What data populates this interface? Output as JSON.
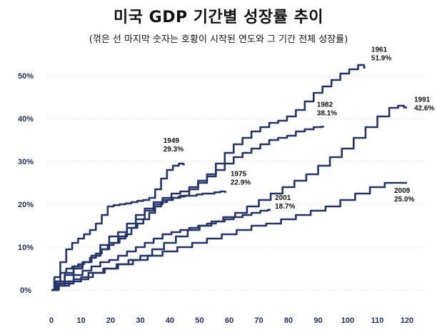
{
  "title": "미국 GDP 기간별 성장률 추이",
  "subtitle": "(꺾은 선 마지막 숫자는 호황이 시작된 연도와 그 기간 전체 성장률)",
  "chart_data": {
    "type": "line",
    "title": "미국 GDP 기간별 성장률 추이",
    "subtitle": "(꺾은 선 마지막 숫자는 호황이 시작된 연도와 그 기간 전체 성장률)",
    "xlabel": "",
    "ylabel": "",
    "xlim": [
      0,
      120
    ],
    "ylim": [
      0,
      50
    ],
    "x_ticks": [
      "0",
      "10",
      "20",
      "30",
      "40",
      "50",
      "60",
      "70",
      "80",
      "90",
      "100",
      "110",
      "120"
    ],
    "y_ticks": [
      "0%",
      "10%",
      "20%",
      "30%",
      "40%",
      "50%"
    ],
    "grid": true,
    "series_color": "#233468",
    "series": [
      {
        "name": "1961",
        "label": "51.9%",
        "x": [
          0,
          3,
          6,
          9,
          12,
          15,
          18,
          21,
          24,
          27,
          30,
          33,
          36,
          39,
          42,
          45,
          48,
          51,
          54,
          57,
          60,
          63,
          66,
          69,
          72,
          75,
          78,
          81,
          84,
          87,
          90,
          93,
          96,
          99,
          102,
          105,
          106
        ],
        "y": [
          0,
          2.0,
          4.0,
          5.5,
          6.5,
          8.0,
          10.5,
          12.5,
          13.5,
          15.5,
          17.5,
          19.0,
          20.5,
          21.5,
          22.5,
          23.0,
          24.0,
          25.5,
          27.0,
          29.5,
          32.0,
          34.0,
          35.5,
          37.0,
          38.0,
          39.0,
          39.5,
          40.5,
          42.0,
          44.0,
          46.0,
          47.5,
          49.0,
          50.5,
          51.5,
          52.5,
          51.9
        ]
      },
      {
        "name": "1949",
        "label": "29.3%",
        "x": [
          0,
          2,
          4,
          6,
          8,
          10,
          12,
          14,
          16,
          18,
          20,
          22,
          24,
          26,
          28,
          30,
          32,
          34,
          36,
          38,
          40,
          42,
          44,
          45
        ],
        "y": [
          0,
          3.0,
          6.5,
          9.5,
          11.0,
          12.0,
          13.0,
          14.0,
          15.5,
          17.5,
          19.5,
          19.8,
          20.0,
          20.2,
          20.5,
          20.8,
          21.0,
          21.5,
          23.5,
          26.0,
          28.0,
          29.0,
          29.5,
          29.3
        ]
      },
      {
        "name": "1975",
        "label": "22.9%",
        "x": [
          0,
          2,
          4,
          6,
          8,
          10,
          12,
          14,
          16,
          18,
          20,
          22,
          24,
          26,
          28,
          30,
          32,
          34,
          36,
          38,
          40,
          42,
          44,
          46,
          48,
          50,
          52,
          54,
          56,
          58,
          59
        ],
        "y": [
          0,
          2.0,
          4.0,
          5.0,
          5.5,
          6.0,
          6.5,
          7.5,
          8.5,
          9.5,
          10.5,
          11.0,
          12.0,
          13.0,
          14.5,
          15.5,
          16.5,
          18.0,
          19.5,
          20.5,
          21.0,
          21.5,
          21.8,
          22.0,
          22.0,
          22.3,
          22.5,
          22.5,
          22.8,
          23.0,
          22.9
        ]
      },
      {
        "name": "1982",
        "label": "38.1%",
        "x": [
          0,
          3,
          6,
          9,
          12,
          15,
          18,
          21,
          24,
          27,
          30,
          33,
          36,
          39,
          42,
          45,
          48,
          51,
          54,
          57,
          60,
          63,
          66,
          69,
          72,
          75,
          78,
          81,
          84,
          87,
          90,
          92
        ],
        "y": [
          0,
          1.5,
          3.5,
          5.0,
          6.5,
          8.0,
          9.5,
          11.0,
          12.5,
          14.5,
          16.5,
          18.5,
          20.0,
          21.0,
          21.5,
          22.0,
          23.5,
          25.0,
          26.5,
          28.0,
          29.5,
          31.0,
          32.0,
          33.0,
          34.0,
          35.0,
          35.5,
          36.0,
          37.0,
          37.5,
          38.0,
          38.1
        ]
      },
      {
        "name": "1991",
        "label": "42.6%",
        "x": [
          0,
          4,
          8,
          12,
          16,
          20,
          24,
          28,
          32,
          36,
          40,
          44,
          48,
          52,
          56,
          60,
          64,
          68,
          72,
          76,
          80,
          84,
          88,
          92,
          96,
          100,
          104,
          108,
          112,
          116,
          118,
          120
        ],
        "y": [
          0,
          1.0,
          2.0,
          3.0,
          4.0,
          5.0,
          6.0,
          7.0,
          8.0,
          9.5,
          11.0,
          12.5,
          14.0,
          15.0,
          16.0,
          17.0,
          18.0,
          19.5,
          21.0,
          22.5,
          24.0,
          25.5,
          27.0,
          29.0,
          31.0,
          33.0,
          35.5,
          38.0,
          40.5,
          42.5,
          43.0,
          42.6
        ]
      },
      {
        "name": "2001",
        "label": "18.7%",
        "x": [
          0,
          3,
          6,
          9,
          12,
          15,
          18,
          21,
          24,
          27,
          30,
          33,
          36,
          39,
          42,
          45,
          48,
          51,
          54,
          57,
          60,
          63,
          66,
          69,
          72,
          74
        ],
        "y": [
          0,
          1.0,
          2.0,
          3.5,
          4.5,
          5.5,
          6.5,
          7.0,
          8.0,
          9.0,
          10.0,
          11.0,
          12.0,
          13.0,
          13.5,
          14.0,
          14.5,
          15.0,
          15.5,
          16.0,
          16.5,
          17.0,
          17.5,
          18.0,
          18.5,
          18.7
        ]
      },
      {
        "name": "2009",
        "label": "25.0%",
        "x": [
          0,
          5,
          10,
          15,
          20,
          25,
          30,
          35,
          40,
          45,
          50,
          55,
          60,
          65,
          70,
          75,
          80,
          85,
          90,
          95,
          100,
          105,
          110,
          115,
          120
        ],
        "y": [
          0,
          1.5,
          2.5,
          4.0,
          5.0,
          6.0,
          7.0,
          8.0,
          9.0,
          10.0,
          11.0,
          12.0,
          13.0,
          14.0,
          15.0,
          15.5,
          16.5,
          17.5,
          18.5,
          19.5,
          21.0,
          22.5,
          24.0,
          25.0,
          25.0
        ]
      }
    ]
  }
}
